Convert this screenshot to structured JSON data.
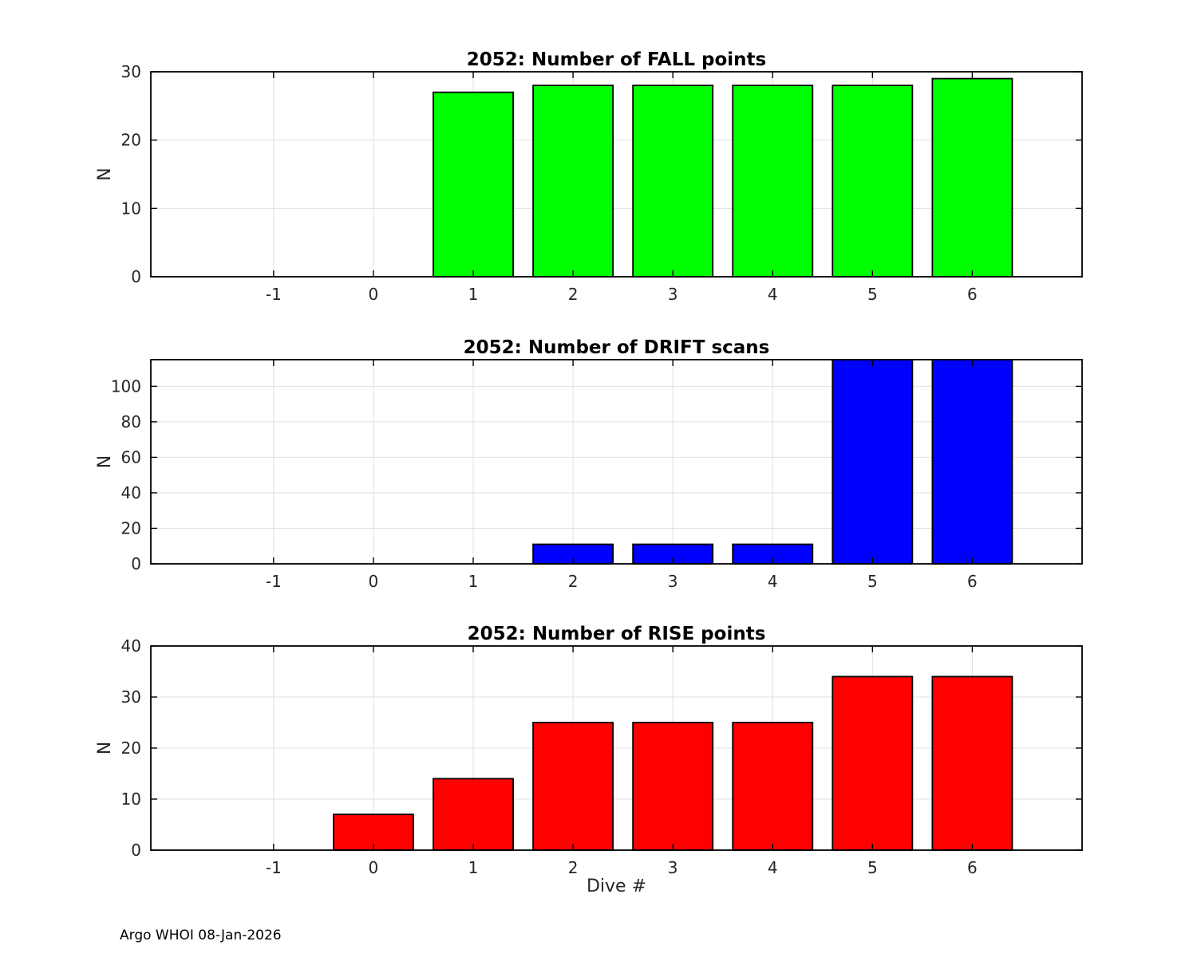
{
  "footer": "Argo WHOI 08-Jan-2026",
  "chart_data": [
    {
      "type": "bar",
      "title": "2052: Number of FALL points",
      "ylabel": "N",
      "xlabel": "",
      "bar_color": "#00ff00",
      "x": [
        1,
        2,
        3,
        4,
        5,
        6
      ],
      "values": [
        27,
        28,
        28,
        28,
        28,
        29
      ],
      "xticks": [
        -1,
        0,
        1,
        2,
        3,
        4,
        5,
        6
      ],
      "yticks": [
        0,
        10,
        20,
        30
      ],
      "xlim": [
        -2.23,
        7.1
      ],
      "ylim": [
        0,
        30
      ],
      "bar_width": 0.8,
      "grid": true,
      "legend": "none"
    },
    {
      "type": "bar",
      "title": "2052: Number of DRIFT scans",
      "ylabel": "N",
      "xlabel": "",
      "bar_color": "#0000ff",
      "x": [
        2,
        3,
        4,
        5,
        6
      ],
      "values": [
        11,
        11,
        11,
        115,
        115
      ],
      "xticks": [
        -1,
        0,
        1,
        2,
        3,
        4,
        5,
        6
      ],
      "yticks": [
        0,
        20,
        40,
        60,
        80,
        100
      ],
      "xlim": [
        -2.23,
        7.1
      ],
      "ylim": [
        0,
        115
      ],
      "bar_width": 0.8,
      "grid": true,
      "legend": "none"
    },
    {
      "type": "bar",
      "title": "2052: Number of RISE points",
      "ylabel": "N",
      "xlabel": "Dive #",
      "bar_color": "#ff0000",
      "x": [
        0,
        1,
        2,
        3,
        4,
        5,
        6
      ],
      "values": [
        7,
        14,
        25,
        25,
        25,
        34,
        34
      ],
      "xticks": [
        -1,
        0,
        1,
        2,
        3,
        4,
        5,
        6
      ],
      "yticks": [
        0,
        10,
        20,
        30,
        40
      ],
      "xlim": [
        -2.23,
        7.1
      ],
      "ylim": [
        0,
        40
      ],
      "bar_width": 0.8,
      "grid": true,
      "legend": "none"
    }
  ]
}
